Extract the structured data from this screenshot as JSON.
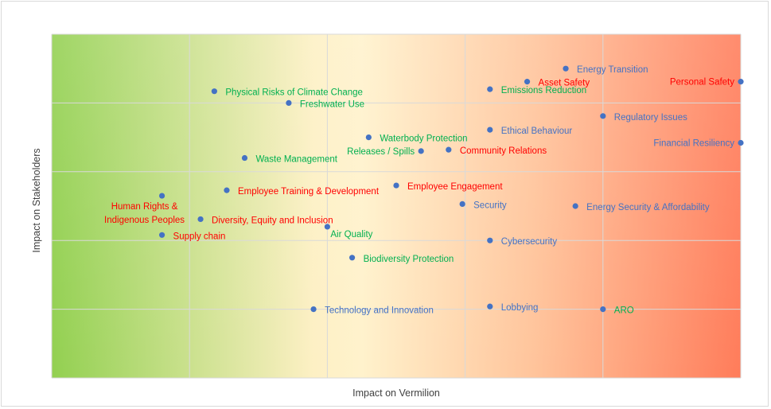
{
  "chart_data": {
    "type": "scatter",
    "xlabel": "Impact on Vermilion",
    "ylabel": "Impact on Stakeholders",
    "xlim": [
      0,
      5
    ],
    "ylim": [
      0,
      5
    ],
    "grid": true,
    "background": "green-yellow-red gradient",
    "colors": {
      "marker": "#4472c4",
      "blue_label": "#4472c4",
      "green_label": "#00b050",
      "red_label": "#ff0000",
      "gradient_low": "#92d050",
      "gradient_mid": "#fff2cc",
      "gradient_high": "#ff7c5a"
    },
    "points": [
      {
        "label": "Energy Transition",
        "x": 3.73,
        "y": 4.5,
        "color": "blue",
        "anchor": "right"
      },
      {
        "label": "Asset Safety",
        "x": 3.45,
        "y": 4.31,
        "color": "red",
        "anchor": "right"
      },
      {
        "label": "Personal Safety",
        "x": 5.0,
        "y": 4.31,
        "color": "red",
        "anchor": "left"
      },
      {
        "label": "Emissions Reduction",
        "x": 3.18,
        "y": 4.2,
        "color": "green",
        "anchor": "right"
      },
      {
        "label": "Physical Risks of Climate Change",
        "x": 1.18,
        "y": 4.17,
        "color": "green",
        "anchor": "right"
      },
      {
        "label": "Freshwater Use",
        "x": 1.72,
        "y": 4.0,
        "color": "green",
        "anchor": "right"
      },
      {
        "label": "Regulatory Issues",
        "x": 4.0,
        "y": 3.81,
        "color": "blue",
        "anchor": "right"
      },
      {
        "label": "Ethical Behaviour",
        "x": 3.18,
        "y": 3.61,
        "color": "blue",
        "anchor": "right"
      },
      {
        "label": "Waterbody Protection",
        "x": 2.3,
        "y": 3.5,
        "color": "green",
        "anchor": "right"
      },
      {
        "label": "Financial Resiliency",
        "x": 5.0,
        "y": 3.42,
        "color": "blue",
        "anchor": "left"
      },
      {
        "label": "Releases / Spills",
        "x": 2.68,
        "y": 3.3,
        "color": "green",
        "anchor": "left"
      },
      {
        "label": "Community Relations",
        "x": 2.88,
        "y": 3.32,
        "color": "red",
        "anchor": "right"
      },
      {
        "label": "Waste Management",
        "x": 1.4,
        "y": 3.2,
        "color": "green",
        "anchor": "right"
      },
      {
        "label": "Employee Training & Development",
        "x": 1.27,
        "y": 2.73,
        "color": "red",
        "anchor": "right"
      },
      {
        "label": "Employee Engagement",
        "x": 2.5,
        "y": 2.8,
        "color": "red",
        "anchor": "right"
      },
      {
        "label": "Human Rights & Indigenous Peoples",
        "x": 0.8,
        "y": 2.65,
        "color": "red",
        "anchor": "below-left"
      },
      {
        "label": "Security",
        "x": 2.98,
        "y": 2.53,
        "color": "blue",
        "anchor": "right"
      },
      {
        "label": "Energy Security & Affordability",
        "x": 3.8,
        "y": 2.5,
        "color": "blue",
        "anchor": "right"
      },
      {
        "label": "Diversity, Equity and Inclusion",
        "x": 1.08,
        "y": 2.31,
        "color": "red",
        "anchor": "right"
      },
      {
        "label": "Air Quality",
        "x": 2.0,
        "y": 2.2,
        "color": "green",
        "anchor": "below-right"
      },
      {
        "label": "Supply chain",
        "x": 0.8,
        "y": 2.08,
        "color": "red",
        "anchor": "right"
      },
      {
        "label": "Cybersecurity",
        "x": 3.18,
        "y": 2.0,
        "color": "blue",
        "anchor": "right"
      },
      {
        "label": "Biodiversity Protection",
        "x": 2.18,
        "y": 1.75,
        "color": "green",
        "anchor": "right"
      },
      {
        "label": "Technology and Innovation",
        "x": 1.9,
        "y": 1.0,
        "color": "blue",
        "anchor": "right"
      },
      {
        "label": "Lobbying",
        "x": 3.18,
        "y": 1.04,
        "color": "blue",
        "anchor": "right"
      },
      {
        "label": "ARO",
        "x": 4.0,
        "y": 1.0,
        "color": "green",
        "anchor": "right"
      }
    ]
  }
}
